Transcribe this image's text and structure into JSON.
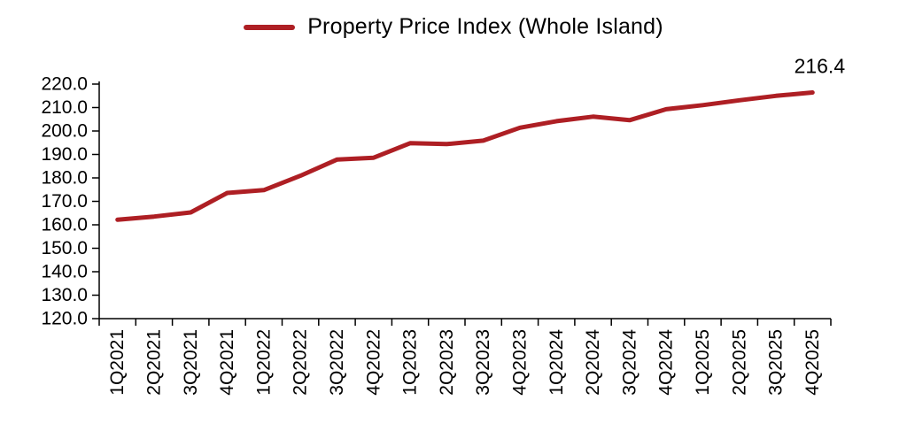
{
  "legend": {
    "label": "Property Price Index (Whole Island)"
  },
  "colors": {
    "line": "#AE1F24",
    "axis": "#000000",
    "text": "#000000"
  },
  "chart_data": {
    "type": "line",
    "title": "",
    "categories": [
      "1Q2021",
      "2Q2021",
      "3Q2021",
      "4Q2021",
      "1Q2022",
      "2Q2022",
      "3Q2022",
      "4Q2022",
      "1Q2023",
      "2Q2023",
      "3Q2023",
      "4Q2023",
      "1Q2024",
      "2Q2024",
      "3Q2024",
      "4Q2024",
      "1Q2025",
      "2Q2025",
      "3Q2025",
      "4Q2025"
    ],
    "series": [
      {
        "name": "Property Price Index (Whole Island)",
        "values": [
          162.2,
          163.5,
          165.3,
          173.6,
          174.8,
          180.9,
          187.8,
          188.6,
          194.8,
          194.4,
          195.9,
          201.4,
          204.2,
          206.1,
          204.6,
          209.3,
          211.0,
          213.1,
          215.0,
          216.4
        ]
      }
    ],
    "ylim": [
      120,
      220
    ],
    "ytick_step": 10,
    "ytick_labels": [
      "120.0",
      "130.0",
      "140.0",
      "150.0",
      "160.0",
      "170.0",
      "180.0",
      "190.0",
      "200.0",
      "210.0",
      "220.0"
    ],
    "grid": false,
    "legend_position": "top",
    "annotation": {
      "text": "216.4",
      "category": "4Q2025"
    }
  }
}
